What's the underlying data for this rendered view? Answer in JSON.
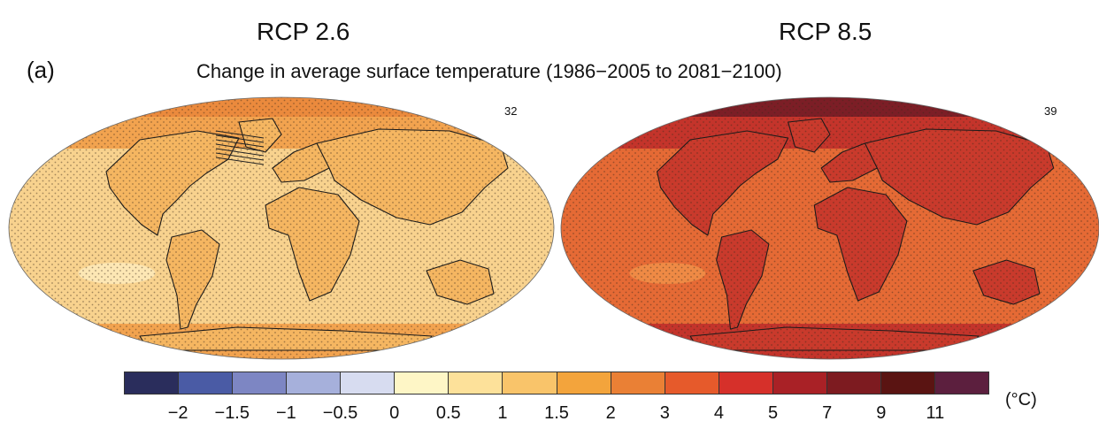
{
  "panel_label": "(a)",
  "subtitle": "Change in average surface temperature (1986−2005 to 2081−2100)",
  "maps": [
    {
      "scenario": "RCP 2.6",
      "model_count": "32",
      "colors": {
        "ocean": "#f8d28e",
        "high_lat": "#f2a34f",
        "arctic": "#eb8a3d",
        "cool": "#fde7b4",
        "land": "#f5b661"
      }
    },
    {
      "scenario": "RCP 8.5",
      "model_count": "39",
      "colors": {
        "ocean": "#e56a35",
        "high_lat": "#c4342b",
        "arctic": "#7c1e26",
        "cool": "#ef8a45",
        "land": "#c93a2c"
      }
    }
  ],
  "colorbar": {
    "colors": [
      "#2a2d5c",
      "#4a5ba5",
      "#7d86c3",
      "#a6b0db",
      "#d7dcf0",
      "#fef6c6",
      "#fde19a",
      "#f9c46a",
      "#f3a43c",
      "#ea8035",
      "#e65a2b",
      "#d6302a",
      "#a92126",
      "#7d1b20",
      "#5a1412",
      "#5c1f3e"
    ],
    "ticks": [
      "−2",
      "−1.5",
      "−1",
      "−0.5",
      "0",
      "0.5",
      "1",
      "1.5",
      "2",
      "3",
      "4",
      "5",
      "7",
      "9",
      "11"
    ],
    "unit": "(°C)"
  }
}
